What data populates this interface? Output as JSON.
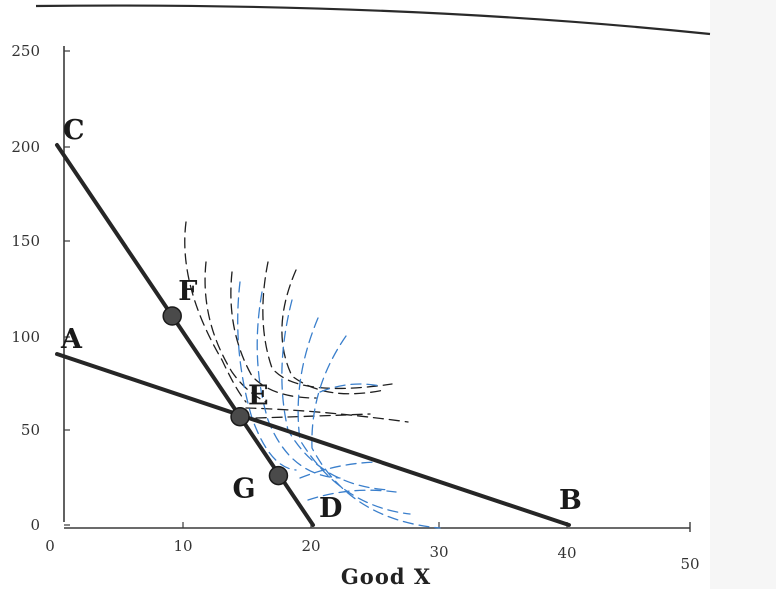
{
  "chart_data": {
    "type": "line",
    "xlabel": "Good X",
    "ylabel": "",
    "xlim": [
      0,
      50
    ],
    "ylim": [
      0,
      250
    ],
    "x_ticks": [
      "0",
      "10",
      "20",
      "30",
      "40",
      "50"
    ],
    "y_ticks": [
      "0",
      "50",
      "100",
      "150",
      "200",
      "250"
    ],
    "grid": false,
    "series": [
      {
        "points": [
          [
            0,
            90
          ],
          [
            40,
            0
          ]
        ],
        "color": "#262626"
      },
      {
        "points": [
          [
            0,
            200
          ],
          [
            20,
            0
          ]
        ],
        "color": "#262626"
      }
    ],
    "points": [
      {
        "label": "A",
        "x": 0,
        "y": 90,
        "marker": false
      },
      {
        "label": "B",
        "x": 40,
        "y": 0,
        "marker": false
      },
      {
        "label": "C",
        "x": 0,
        "y": 200,
        "marker": false
      },
      {
        "label": "D",
        "x": 20,
        "y": 0,
        "marker": false
      },
      {
        "label": "E",
        "x": 14.3,
        "y": 57,
        "marker": true
      },
      {
        "label": "F",
        "x": 9,
        "y": 110,
        "marker": true
      },
      {
        "label": "G",
        "x": 17.3,
        "y": 26,
        "marker": true
      }
    ],
    "sketch_colors": {
      "dark": "#1f1f1f",
      "blue": "#3a7fcc"
    }
  }
}
